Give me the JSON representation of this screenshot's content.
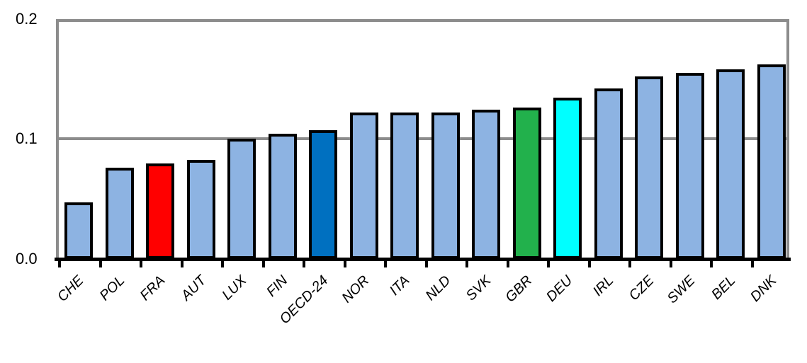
{
  "chart_data": {
    "type": "bar",
    "title": "",
    "xlabel": "",
    "ylabel": "",
    "ylim": [
      0,
      0.2
    ],
    "yticks": [
      "0.0",
      "0.1",
      "0.2"
    ],
    "grid": true,
    "categories": [
      "CHE",
      "POL",
      "FRA",
      "AUT",
      "LUX",
      "FIN",
      "OECD-24",
      "NOR",
      "ITA",
      "NLD",
      "SVK",
      "GBR",
      "DEU",
      "IRL",
      "CZE",
      "SWE",
      "BEL",
      "DNK"
    ],
    "values": [
      0.045,
      0.074,
      0.077,
      0.08,
      0.098,
      0.102,
      0.105,
      0.12,
      0.12,
      0.12,
      0.122,
      0.124,
      0.132,
      0.14,
      0.15,
      0.153,
      0.156,
      0.16
    ],
    "colors": [
      "#8db3e2",
      "#8db3e2",
      "#ff0000",
      "#8db3e2",
      "#8db3e2",
      "#8db3e2",
      "#0070c0",
      "#8db3e2",
      "#8db3e2",
      "#8db3e2",
      "#8db3e2",
      "#22b14c",
      "#00ffff",
      "#8db3e2",
      "#8db3e2",
      "#8db3e2",
      "#8db3e2",
      "#8db3e2"
    ]
  }
}
